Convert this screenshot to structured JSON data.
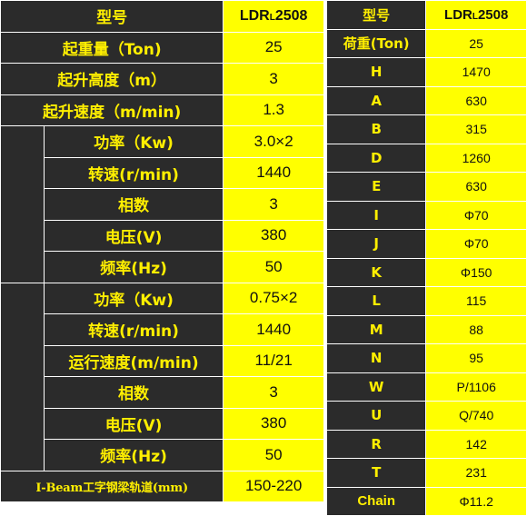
{
  "left_table": {
    "header": {
      "label": "型号",
      "model_main": "LDR",
      "model_sub": "L",
      "model_num": "2508"
    },
    "rows": [
      {
        "label": "起重量（Ton)",
        "value": "25"
      },
      {
        "label": "起升高度（m）",
        "value": "3"
      },
      {
        "label": "起升速度（m/min)",
        "value": "1.3"
      }
    ],
    "group1": [
      {
        "label": "功率（Kw)",
        "value": "3.0×2"
      },
      {
        "label": "转速(r/min)",
        "value": "1440"
      },
      {
        "label": "相数",
        "value": "3"
      },
      {
        "label": "电压(V)",
        "value": "380"
      },
      {
        "label": "频率(Hz)",
        "value": "50"
      }
    ],
    "group2": [
      {
        "label": "功率（Kw)",
        "value": "0.75×2"
      },
      {
        "label": "转速(r/min)",
        "value": "1440"
      },
      {
        "label": "运行速度(m/min)",
        "value": "11/21"
      },
      {
        "label": "相数",
        "value": "3"
      },
      {
        "label": "电压(V)",
        "value": "380"
      },
      {
        "label": "频率(Hz)",
        "value": "50"
      }
    ],
    "footer": {
      "label": "I-Beam工字钢梁轨道(mm)",
      "value": "150-220"
    }
  },
  "right_table": {
    "header": {
      "label": "型号",
      "model_main": "LDR",
      "model_sub": "L",
      "model_num": "2508"
    },
    "rows": [
      {
        "label": "荷重(Ton)",
        "value": "25"
      },
      {
        "label": "H",
        "value": "1470"
      },
      {
        "label": "A",
        "value": "630"
      },
      {
        "label": "B",
        "value": "315"
      },
      {
        "label": "D",
        "value": "1260"
      },
      {
        "label": "E",
        "value": "630"
      },
      {
        "label": "I",
        "value": "Φ70"
      },
      {
        "label": "J",
        "value": "Φ70"
      },
      {
        "label": "K",
        "value": "Φ150"
      },
      {
        "label": "L",
        "value": "115"
      },
      {
        "label": "M",
        "value": "88"
      },
      {
        "label": "N",
        "value": "95"
      },
      {
        "label": "W",
        "value": "P/1106"
      },
      {
        "label": "U",
        "value": "Q/740"
      },
      {
        "label": "R",
        "value": "142"
      },
      {
        "label": "T",
        "value": "231"
      },
      {
        "label": "Chain",
        "value": "Φ11.2"
      }
    ]
  },
  "colors": {
    "dark": "#2b2b2b",
    "label_text": "#ffef00",
    "value_bg": "#ffff00",
    "value_text": "#111111"
  }
}
